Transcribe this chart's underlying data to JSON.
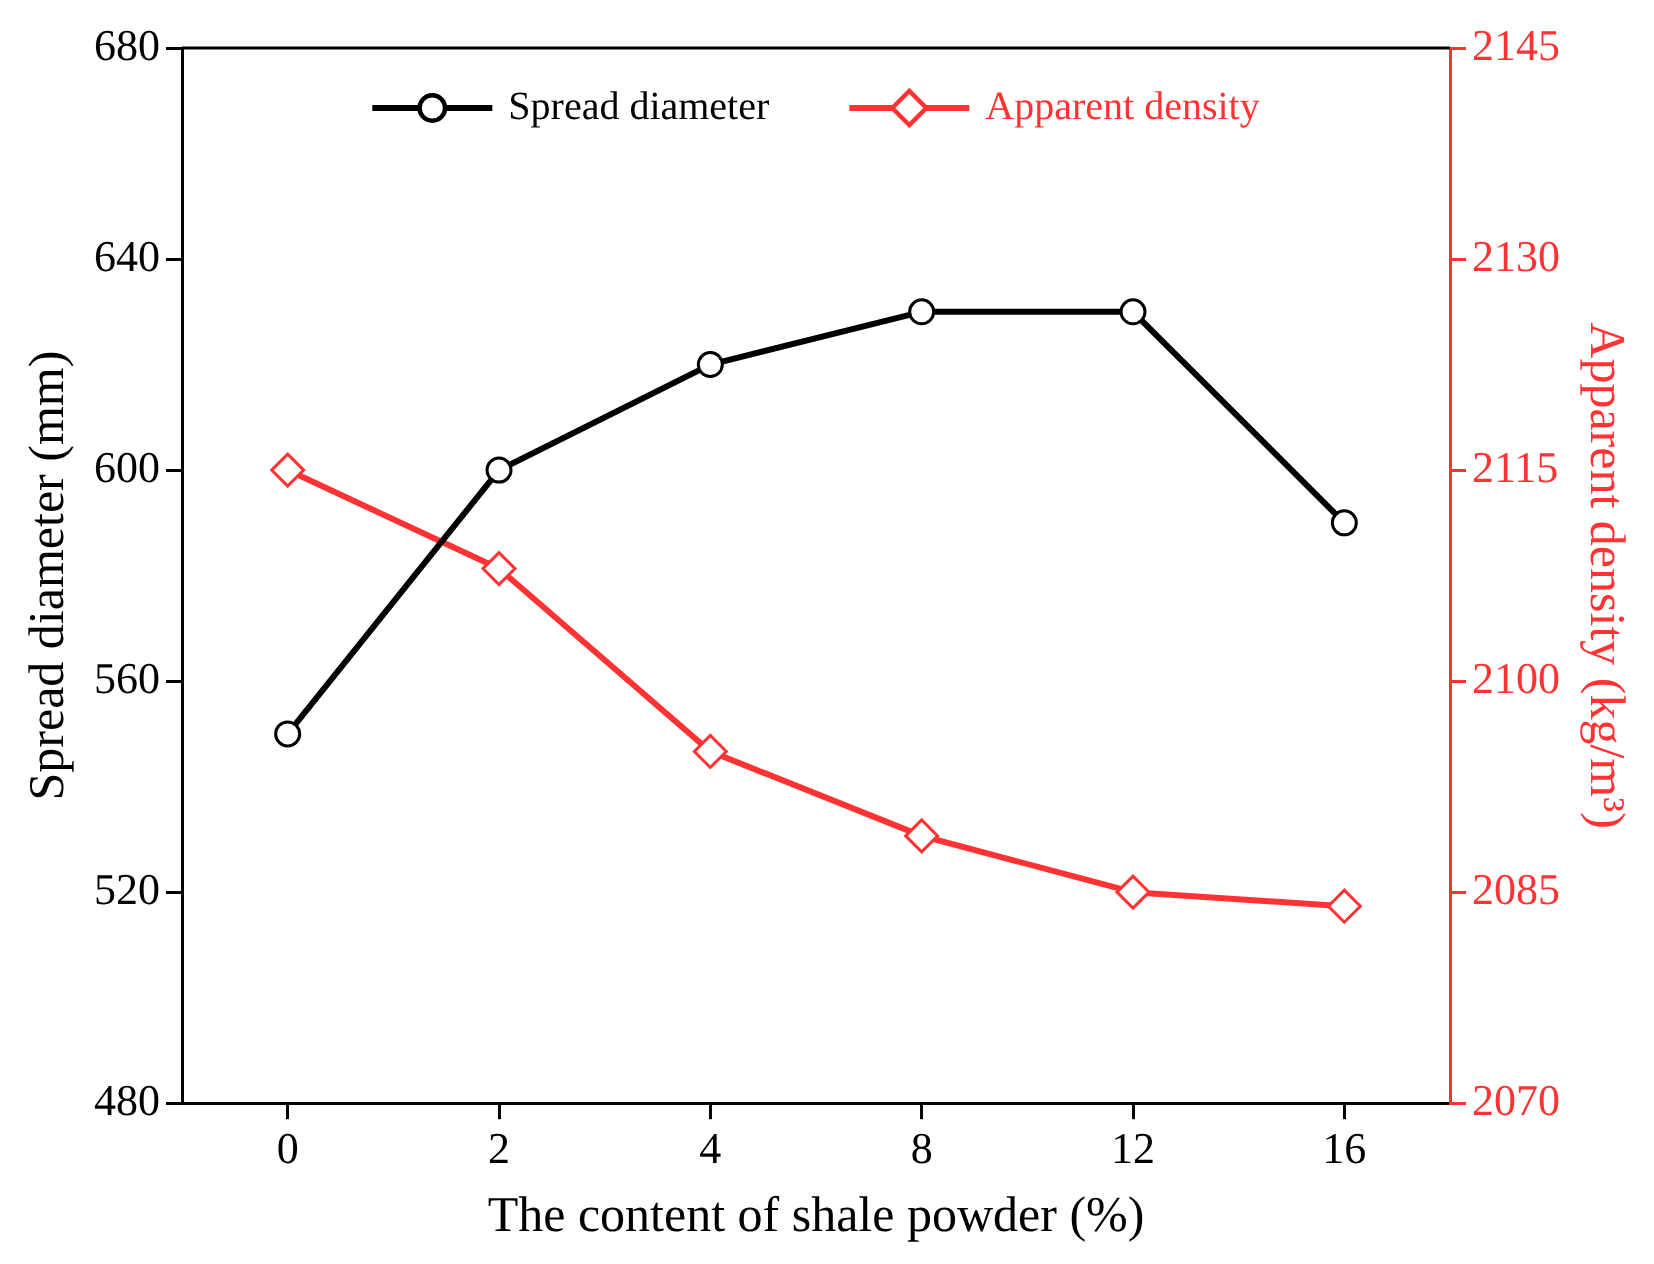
{
  "chart_data": {
    "type": "line",
    "xlabel": "The content of shale powder (%)",
    "ylabel": "Spread diameter (mm)",
    "y2label": "Apparent density (kg/m³)",
    "categories": [
      "0",
      "2",
      "4",
      "8",
      "12",
      "16"
    ],
    "series": [
      {
        "name": "Spread diameter",
        "color": "#000000",
        "values": [
          550,
          600,
          620,
          630,
          630,
          590
        ],
        "marker": "circle"
      },
      {
        "name": "Apparent density",
        "color": "#ff3333",
        "axis": "y2",
        "values": [
          2115,
          2108,
          2095,
          2089,
          2085,
          2084
        ],
        "marker": "diamond"
      }
    ],
    "ylim": [
      480,
      680
    ],
    "yticks": [
      480,
      520,
      560,
      600,
      640,
      680
    ],
    "y2lim": [
      2070,
      2145
    ],
    "y2ticks": [
      2070,
      2085,
      2100,
      2115,
      2130,
      2145
    ],
    "grid": false,
    "legend": "top",
    "line_style": "solid"
  }
}
